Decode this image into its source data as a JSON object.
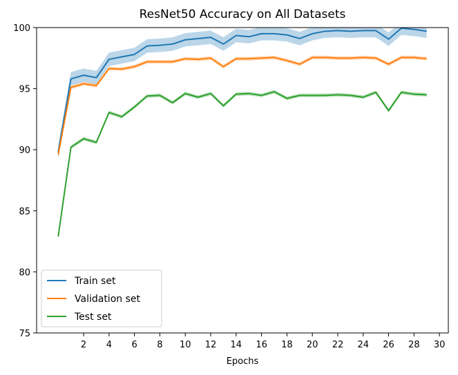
{
  "chart_data": {
    "type": "line",
    "title": "ResNet50 Accuracy on All Datasets",
    "xlabel": "Epochs",
    "ylabel": "",
    "xlim": [
      -1.7,
      30.7
    ],
    "ylim": [
      75,
      100
    ],
    "xticks": [
      2,
      4,
      6,
      8,
      10,
      12,
      14,
      16,
      18,
      20,
      22,
      24,
      26,
      28,
      30
    ],
    "yticks": [
      75,
      80,
      85,
      90,
      95,
      100
    ],
    "grid": false,
    "legend_position": "lower-left",
    "x": [
      0,
      1,
      2,
      3,
      4,
      5,
      6,
      7,
      8,
      9,
      10,
      11,
      12,
      13,
      14,
      15,
      16,
      17,
      18,
      19,
      20,
      21,
      22,
      23,
      24,
      25,
      26,
      27,
      28,
      29
    ],
    "series": [
      {
        "name": "Train set",
        "color": "#1f77b4",
        "values": [
          89.8,
          95.8,
          96.1,
          95.9,
          97.4,
          97.6,
          97.8,
          98.5,
          98.55,
          98.65,
          99.0,
          99.1,
          99.2,
          98.65,
          99.35,
          99.25,
          99.5,
          99.5,
          99.4,
          99.1,
          99.5,
          99.7,
          99.75,
          99.7,
          99.75,
          99.75,
          99.05,
          99.95,
          99.85,
          99.7
        ],
        "band": 0.55
      },
      {
        "name": "Validation set",
        "color": "#ff7f0e",
        "values": [
          89.6,
          95.1,
          95.4,
          95.25,
          96.65,
          96.6,
          96.8,
          97.2,
          97.2,
          97.2,
          97.45,
          97.4,
          97.5,
          96.8,
          97.45,
          97.45,
          97.5,
          97.55,
          97.3,
          97.0,
          97.55,
          97.55,
          97.5,
          97.5,
          97.55,
          97.5,
          97.0,
          97.55,
          97.55,
          97.45
        ],
        "band": 0.15
      },
      {
        "name": "Test set",
        "color": "#2ca02c",
        "values": [
          82.9,
          90.2,
          90.9,
          90.6,
          93.05,
          92.7,
          93.5,
          94.4,
          94.45,
          93.85,
          94.6,
          94.3,
          94.6,
          93.6,
          94.55,
          94.6,
          94.45,
          94.75,
          94.2,
          94.45,
          94.45,
          94.45,
          94.5,
          94.45,
          94.3,
          94.7,
          93.2,
          94.7,
          94.55,
          94.5
        ],
        "band": 0.15
      }
    ]
  }
}
